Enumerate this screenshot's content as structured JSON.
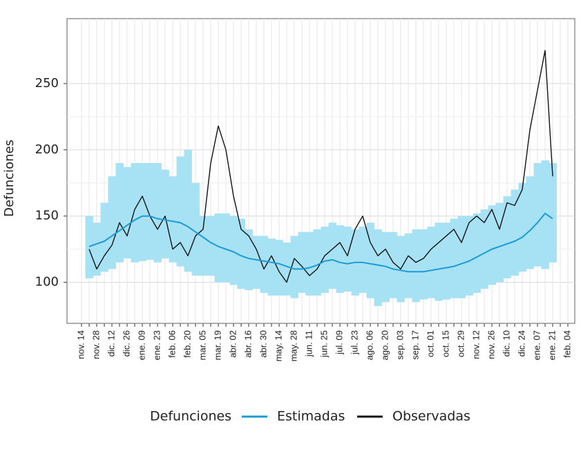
{
  "chart_data": {
    "type": "line",
    "y_label": "Defunciones",
    "legend_title": "Defunciones",
    "ylim": [
      69,
      299
    ],
    "yticks": [
      100,
      150,
      200,
      250
    ],
    "grid": true,
    "categories": [
      "nov. 14",
      null,
      "nov. 28",
      null,
      "dic. 12",
      null,
      "dic. 26",
      null,
      "ene. 09",
      null,
      "ene. 23",
      null,
      "feb. 06",
      null,
      "feb. 20",
      null,
      "mar. 05",
      null,
      "mar. 19",
      null,
      "abr. 02",
      null,
      "abr. 16",
      null,
      "abr. 30",
      null,
      "may. 14",
      null,
      "may. 28",
      null,
      "jun. 11",
      null,
      "jun. 25",
      null,
      "jul. 09",
      null,
      "jul. 23",
      null,
      "ago. 06",
      null,
      "ago. 20",
      null,
      "sep. 03",
      null,
      "sep. 17",
      null,
      "oct. 01",
      null,
      "oct. 15",
      null,
      "oct. 29",
      null,
      "nov. 12",
      null,
      "nov. 26",
      null,
      "dic. 10",
      null,
      "dic. 24",
      null,
      "ene. 07",
      null,
      "ene. 21",
      null,
      "feb. 04"
    ],
    "interval": {
      "color": "#a6e1f4",
      "upper": [
        null,
        150,
        145,
        160,
        180,
        190,
        187,
        190,
        190,
        190,
        190,
        185,
        180,
        195,
        200,
        175,
        150,
        150,
        152,
        152,
        150,
        148,
        140,
        135,
        135,
        133,
        132,
        130,
        135,
        138,
        138,
        140,
        142,
        145,
        143,
        142,
        140,
        142,
        145,
        140,
        138,
        138,
        135,
        137,
        140,
        140,
        142,
        145,
        145,
        148,
        150,
        150,
        152,
        155,
        158,
        160,
        165,
        170,
        175,
        180,
        190,
        192,
        190,
        null,
        null
      ],
      "lower": [
        null,
        103,
        105,
        108,
        110,
        115,
        118,
        115,
        116,
        117,
        115,
        118,
        115,
        112,
        108,
        105,
        105,
        105,
        100,
        100,
        98,
        95,
        94,
        95,
        92,
        90,
        90,
        90,
        88,
        92,
        90,
        90,
        92,
        95,
        92,
        93,
        90,
        92,
        88,
        82,
        85,
        88,
        85,
        88,
        85,
        87,
        88,
        86,
        87,
        88,
        88,
        90,
        92,
        95,
        98,
        100,
        103,
        105,
        108,
        110,
        112,
        110,
        115,
        null,
        null
      ]
    },
    "series": [
      {
        "name": "Estimadas",
        "color": "#1a9bd7",
        "values": [
          null,
          127,
          129,
          131,
          135,
          139,
          143,
          147,
          150,
          150,
          148,
          147,
          146,
          145,
          142,
          138,
          134,
          130,
          127,
          125,
          123,
          120,
          118,
          117,
          116,
          115,
          114,
          112,
          110,
          110,
          111,
          113,
          116,
          117,
          115,
          114,
          115,
          115,
          114,
          113,
          112,
          110,
          109,
          108,
          108,
          108,
          109,
          110,
          111,
          112,
          114,
          116,
          119,
          122,
          125,
          127,
          129,
          131,
          134,
          139,
          145,
          152,
          148,
          null,
          null
        ]
      },
      {
        "name": "Observadas",
        "color": "#111111",
        "values": [
          null,
          125,
          110,
          120,
          128,
          145,
          135,
          155,
          165,
          150,
          140,
          150,
          125,
          130,
          120,
          135,
          140,
          190,
          218,
          200,
          165,
          140,
          135,
          125,
          110,
          120,
          108,
          100,
          118,
          112,
          105,
          110,
          120,
          125,
          130,
          120,
          140,
          150,
          130,
          120,
          125,
          115,
          110,
          120,
          115,
          118,
          125,
          130,
          135,
          140,
          130,
          145,
          150,
          145,
          155,
          140,
          160,
          158,
          170,
          215,
          245,
          275,
          180,
          null,
          null
        ]
      }
    ]
  }
}
